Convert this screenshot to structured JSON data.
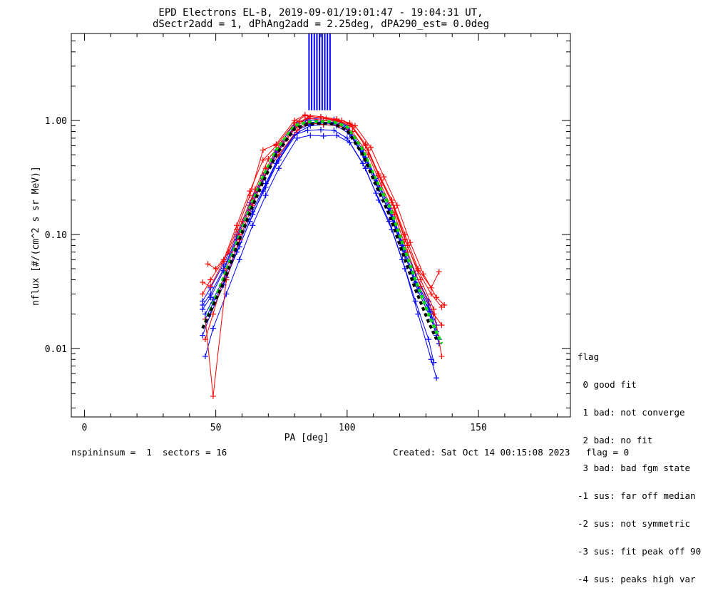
{
  "title": {
    "line1": "EPD Electrons EL-B, 2019-09-01/19:01:47 - 19:04:31 UT,",
    "line2": "dSectr2add = 1, dPhAng2add = 2.25deg, dPA290_est=   0.0deg"
  },
  "flag_legend": {
    "header": "flag",
    "items": [
      " 0 good fit",
      " 1 bad: not converge",
      " 2 bad: no fit",
      " 3 bad: bad fgm state",
      "-1 sus: far off median",
      "-2 sus: not symmetric",
      "-3 sus: fit peak off 90",
      "-4 sus: peaks high var"
    ]
  },
  "footer": {
    "left": "nspininsum =  1  sectors = 16",
    "right": "Created: Sat Oct 14 00:15:08 2023   flag = 0"
  },
  "colors": {
    "blue": "#0000ff",
    "red": "#ff0000",
    "green": "#00dd00",
    "black": "#000000"
  },
  "chart_data": {
    "type": "line",
    "xlabel": "PA [deg]",
    "ylabel": "nflux [#/(cm^2 s sr MeV)]",
    "xlim": [
      -5,
      185
    ],
    "ylim": [
      0.0025,
      5.8
    ],
    "yscale": "log",
    "xticks": [
      0,
      50,
      100,
      150
    ],
    "xtick_labels": [
      "0",
      "50",
      "100",
      "150"
    ],
    "yticks": [
      0.01,
      0.1,
      1.0
    ],
    "ytick_labels": [
      "0.01",
      "0.10",
      "1.00"
    ],
    "series": [
      {
        "color": "blue",
        "x": [
          45,
          48,
          53,
          58,
          63,
          68,
          73,
          80,
          85,
          90,
          95,
          100,
          106,
          111,
          116,
          121,
          126,
          131,
          134
        ],
        "y": [
          0.022,
          0.028,
          0.048,
          0.09,
          0.17,
          0.3,
          0.5,
          0.86,
          0.96,
          0.97,
          0.96,
          0.84,
          0.5,
          0.28,
          0.16,
          0.075,
          0.038,
          0.022,
          0.013
        ]
      },
      {
        "color": "blue",
        "x": [
          46,
          49,
          54,
          59,
          64,
          69,
          74,
          81,
          86,
          91,
          96,
          101,
          107,
          112,
          117,
          122,
          127,
          132,
          135
        ],
        "y": [
          0.018,
          0.025,
          0.042,
          0.078,
          0.15,
          0.26,
          0.45,
          0.78,
          0.9,
          0.92,
          0.9,
          0.76,
          0.45,
          0.25,
          0.14,
          0.065,
          0.032,
          0.018,
          0.011
        ]
      },
      {
        "color": "blue",
        "x": [
          45,
          48,
          53,
          58,
          63,
          68,
          73,
          80,
          85,
          90,
          95,
          100,
          106,
          111,
          116,
          121,
          126,
          131,
          134
        ],
        "y": [
          0.026,
          0.034,
          0.055,
          0.1,
          0.19,
          0.33,
          0.55,
          0.95,
          1.03,
          1.05,
          1.02,
          0.9,
          0.55,
          0.31,
          0.18,
          0.085,
          0.045,
          0.026,
          0.016
        ]
      },
      {
        "color": "blue",
        "x": [
          46,
          49,
          54,
          59,
          64,
          69,
          74,
          81,
          86,
          91,
          96,
          101,
          107,
          112,
          117,
          122,
          127,
          132,
          134
        ],
        "y": [
          0.0085,
          0.015,
          0.03,
          0.06,
          0.12,
          0.22,
          0.38,
          0.7,
          0.74,
          0.73,
          0.74,
          0.64,
          0.38,
          0.2,
          0.11,
          0.05,
          0.02,
          0.008,
          0.0055
        ]
      },
      {
        "color": "blue",
        "x": [
          45,
          48,
          53,
          58,
          63,
          68,
          73,
          80,
          85,
          90,
          95,
          100,
          106,
          111,
          116,
          121,
          126,
          131,
          133
        ],
        "y": [
          0.013,
          0.02,
          0.036,
          0.07,
          0.13,
          0.24,
          0.42,
          0.75,
          0.82,
          0.83,
          0.82,
          0.7,
          0.42,
          0.23,
          0.13,
          0.06,
          0.026,
          0.012,
          0.0075
        ]
      },
      {
        "color": "blue",
        "x": [
          46,
          49,
          54,
          59,
          64,
          69,
          74,
          81,
          86,
          91,
          96,
          101,
          107,
          112,
          117,
          122,
          127,
          132,
          135
        ],
        "y": [
          0.02,
          0.027,
          0.045,
          0.085,
          0.16,
          0.28,
          0.48,
          0.82,
          0.93,
          0.95,
          0.93,
          0.8,
          0.47,
          0.27,
          0.15,
          0.07,
          0.035,
          0.02,
          0.012
        ]
      },
      {
        "color": "blue",
        "x": [
          45,
          48,
          53,
          58,
          63,
          68,
          73,
          80,
          85,
          90,
          95,
          100,
          106,
          111,
          116,
          121,
          126,
          131,
          134
        ],
        "y": [
          0.024,
          0.03,
          0.05,
          0.095,
          0.18,
          0.31,
          0.52,
          0.9,
          1.0,
          1.01,
          0.99,
          0.86,
          0.52,
          0.3,
          0.17,
          0.08,
          0.04,
          0.024,
          0.014
        ]
      },
      {
        "color": "red",
        "x": [
          45,
          48,
          53,
          58,
          63,
          68,
          73,
          80,
          84,
          90,
          96,
          101,
          107,
          112,
          117,
          122,
          127,
          132,
          136
        ],
        "y": [
          0.03,
          0.04,
          0.06,
          0.12,
          0.24,
          0.45,
          0.6,
          0.95,
          1.1,
          1.05,
          1.0,
          0.93,
          0.6,
          0.33,
          0.19,
          0.09,
          0.048,
          0.03,
          0.023
        ]
      },
      {
        "color": "red",
        "x": [
          46,
          49,
          54,
          59,
          64,
          69,
          74,
          81,
          85,
          91,
          97,
          102,
          108,
          113,
          118,
          123,
          128,
          133,
          136
        ],
        "y": [
          0.012,
          0.02,
          0.05,
          0.1,
          0.2,
          0.38,
          0.55,
          0.9,
          1.05,
          1.0,
          0.98,
          0.88,
          0.55,
          0.3,
          0.17,
          0.08,
          0.04,
          0.022,
          0.0085
        ]
      },
      {
        "color": "red",
        "x": [
          45,
          48,
          53,
          58,
          63,
          68,
          73,
          80,
          84,
          90,
          96,
          101,
          107,
          112,
          117,
          122,
          127,
          132,
          135
        ],
        "y": [
          0.038,
          0.035,
          0.058,
          0.11,
          0.22,
          0.55,
          0.62,
          1.0,
          1.12,
          1.08,
          1.03,
          0.95,
          0.62,
          0.34,
          0.2,
          0.1,
          0.05,
          0.034,
          0.047
        ]
      },
      {
        "color": "red",
        "x": [
          46,
          49,
          54,
          59,
          64,
          69,
          74,
          81,
          85,
          91,
          97,
          102,
          108,
          113,
          118,
          123,
          128,
          133,
          136
        ],
        "y": [
          0.018,
          0.0038,
          0.04,
          0.09,
          0.18,
          0.35,
          0.5,
          0.82,
          0.95,
          0.92,
          0.9,
          0.8,
          0.5,
          0.27,
          0.15,
          0.07,
          0.035,
          0.02,
          0.016
        ]
      },
      {
        "color": "red",
        "x": [
          47,
          50,
          55,
          60,
          65,
          70,
          75,
          82,
          86,
          92,
          98,
          103,
          109,
          114,
          119,
          124,
          129,
          134,
          137
        ],
        "y": [
          0.055,
          0.05,
          0.07,
          0.13,
          0.25,
          0.46,
          0.63,
          0.98,
          1.08,
          1.04,
          1.0,
          0.9,
          0.58,
          0.32,
          0.18,
          0.085,
          0.045,
          0.028,
          0.024
        ]
      },
      {
        "color": "green",
        "dash": true,
        "x": [
          45,
          48,
          53,
          58,
          63,
          68,
          73,
          80,
          85,
          90,
          95,
          100,
          106,
          111,
          116,
          121,
          126,
          131,
          136
        ],
        "y": [
          0.015,
          0.022,
          0.042,
          0.085,
          0.17,
          0.32,
          0.55,
          0.9,
          0.97,
          0.98,
          0.97,
          0.88,
          0.55,
          0.3,
          0.18,
          0.085,
          0.04,
          0.02,
          0.011
        ]
      },
      {
        "color": "black",
        "dash": true,
        "x": [
          45,
          48,
          53,
          58,
          63,
          68,
          73,
          80,
          85,
          90,
          95,
          100,
          106,
          111,
          116,
          121,
          126,
          131,
          134
        ],
        "y": [
          0.015,
          0.021,
          0.038,
          0.078,
          0.155,
          0.29,
          0.5,
          0.85,
          0.93,
          0.94,
          0.93,
          0.82,
          0.5,
          0.27,
          0.15,
          0.07,
          0.033,
          0.017,
          0.012
        ]
      }
    ],
    "bars": {
      "color": "blue",
      "x": [
        85.5,
        86.5,
        87.5,
        88.5,
        89.5,
        90.5,
        91.5,
        92.5,
        93.5
      ],
      "y_bottom": 1.23
    }
  }
}
